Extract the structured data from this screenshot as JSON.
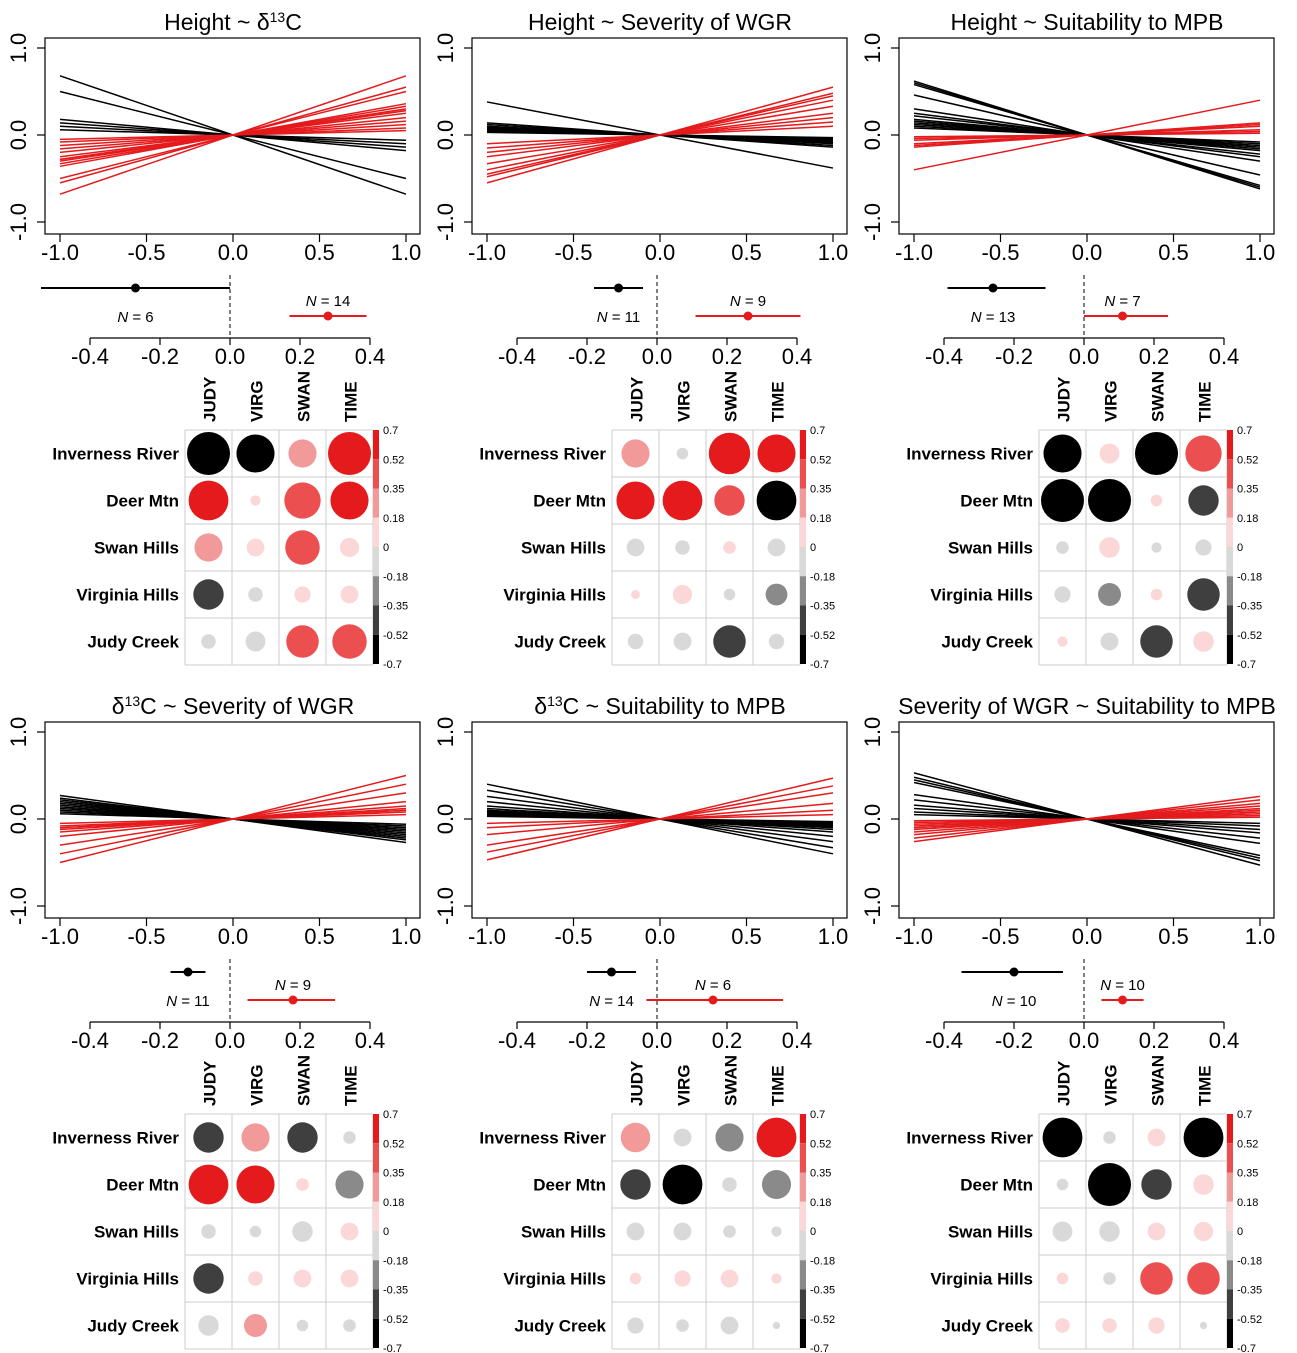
{
  "palette": {
    "neg": "#000000",
    "pos": "#e41a1c",
    "grid": "#cccccc"
  },
  "chart_data": [
    {
      "type": "line",
      "title": "Height ~ δ13C",
      "title_parts": [
        "Height ~ δ",
        "13",
        "C"
      ],
      "xlim": [
        -1,
        1
      ],
      "ylim": [
        -1,
        1
      ],
      "xticks": [
        "-1.0",
        "-0.5",
        "0.0",
        "0.5",
        "1.0"
      ],
      "yticks": [
        "-1.0",
        "0.0",
        "1.0"
      ],
      "slopes": [
        -0.68,
        -0.5,
        -0.18,
        -0.14,
        -0.1,
        -0.06,
        0.68,
        0.55,
        0.5,
        0.36,
        0.33,
        0.28,
        0.25,
        0.2,
        0.16,
        0.12,
        0.08,
        0.05,
        0.28,
        0.3
      ],
      "forest": {
        "type": "scatter",
        "neg": {
          "mean": -0.27,
          "lo": -0.54,
          "hi": 0.0,
          "label": "N = 6"
        },
        "pos": {
          "mean": 0.28,
          "lo": 0.17,
          "hi": 0.39,
          "label": "N = 14"
        },
        "xticks": [
          "-0.4",
          "-0.2",
          "0.0",
          "0.2",
          "0.4"
        ]
      },
      "matrix": {
        "type": "heatmap",
        "rows": [
          "Inverness River",
          "Deer Mtn",
          "Swan Hills",
          "Virginia Hills",
          "Judy Creek"
        ],
        "cols": [
          "JUDY",
          "VIRG",
          "SWAN",
          "TIME"
        ],
        "values": [
          [
            -0.7,
            -0.55,
            0.3,
            0.7
          ],
          [
            0.6,
            0.04,
            0.5,
            0.55
          ],
          [
            0.3,
            0.12,
            0.45,
            0.14
          ],
          [
            -0.35,
            -0.08,
            0.1,
            0.12
          ],
          [
            -0.08,
            -0.15,
            0.4,
            0.45
          ]
        ]
      }
    },
    {
      "type": "line",
      "title": "Height ~ Severity of WGR",
      "title_parts": [
        "Height ~ Severity of WGR",
        "",
        ""
      ],
      "xlim": [
        -1,
        1
      ],
      "ylim": [
        -1,
        1
      ],
      "xticks": [
        "-1.0",
        "-0.5",
        "0.0",
        "0.5",
        "1.0"
      ],
      "yticks": [
        "-1.0",
        "0.0",
        "1.0"
      ],
      "slopes": [
        -0.38,
        -0.14,
        -0.12,
        -0.1,
        -0.09,
        -0.08,
        -0.07,
        -0.06,
        -0.05,
        -0.04,
        -0.03,
        0.55,
        0.48,
        0.45,
        0.4,
        0.33,
        0.25,
        0.2,
        0.15,
        0.1
      ],
      "forest": {
        "type": "scatter",
        "neg": {
          "mean": -0.11,
          "lo": -0.18,
          "hi": -0.04,
          "label": "N = 11"
        },
        "pos": {
          "mean": 0.26,
          "lo": 0.11,
          "hi": 0.41,
          "label": "N = 9"
        },
        "xticks": [
          "-0.4",
          "-0.2",
          "0.0",
          "0.2",
          "0.4"
        ]
      },
      "matrix": {
        "type": "heatmap",
        "rows": [
          "Inverness River",
          "Deer Mtn",
          "Swan Hills",
          "Virginia Hills",
          "Judy Creek"
        ],
        "cols": [
          "JUDY",
          "VIRG",
          "SWAN",
          "TIME"
        ],
        "values": [
          [
            0.3,
            -0.05,
            0.65,
            0.55
          ],
          [
            0.55,
            0.6,
            0.35,
            -0.6
          ],
          [
            -0.12,
            -0.08,
            0.06,
            -0.12
          ],
          [
            0.03,
            0.14,
            -0.05,
            -0.18
          ],
          [
            -0.09,
            -0.12,
            -0.4,
            -0.09
          ]
        ]
      }
    },
    {
      "type": "line",
      "title": "Height ~ Suitability to MPB",
      "title_parts": [
        "Height ~ Suitability to MPB",
        "",
        ""
      ],
      "xlim": [
        -1,
        1
      ],
      "ylim": [
        -1,
        1
      ],
      "xticks": [
        "-1.0",
        "-0.5",
        "0.0",
        "0.5",
        "1.0"
      ],
      "yticks": [
        "-1.0",
        "0.0",
        "1.0"
      ],
      "slopes": [
        -0.62,
        -0.6,
        -0.58,
        -0.46,
        -0.3,
        -0.25,
        -0.22,
        -0.18,
        -0.16,
        -0.14,
        -0.12,
        -0.1,
        -0.08,
        0.4,
        0.14,
        0.12,
        0.1,
        0.06,
        0.04,
        0.02
      ],
      "forest": {
        "type": "scatter",
        "neg": {
          "mean": -0.26,
          "lo": -0.39,
          "hi": -0.11,
          "label": "N = 13"
        },
        "pos": {
          "mean": 0.11,
          "lo": 0.0,
          "hi": 0.24,
          "label": "N = 7"
        },
        "xticks": [
          "-0.4",
          "-0.2",
          "0.0",
          "0.2",
          "0.4"
        ]
      },
      "matrix": {
        "type": "heatmap",
        "rows": [
          "Inverness River",
          "Deer Mtn",
          "Swan Hills",
          "Virginia Hills",
          "Judy Creek"
        ],
        "cols": [
          "JUDY",
          "VIRG",
          "SWAN",
          "TIME"
        ],
        "values": [
          [
            -0.55,
            0.15,
            -0.7,
            0.5
          ],
          [
            -0.7,
            -0.7,
            0.05,
            -0.35
          ],
          [
            -0.06,
            0.16,
            -0.04,
            -0.1
          ],
          [
            -0.1,
            -0.2,
            0.05,
            -0.4
          ],
          [
            0.04,
            -0.12,
            -0.4,
            0.16
          ]
        ]
      }
    },
    {
      "type": "line",
      "title": "δ13C ~ Severity of WGR",
      "title_parts": [
        "δ",
        "13",
        "C ~ Severity of WGR"
      ],
      "xlim": [
        -1,
        1
      ],
      "ylim": [
        -1,
        1
      ],
      "xticks": [
        "-1.0",
        "-0.5",
        "0.0",
        "0.5",
        "1.0"
      ],
      "yticks": [
        "-1.0",
        "0.0",
        "1.0"
      ],
      "slopes": [
        -0.27,
        -0.24,
        -0.22,
        -0.2,
        -0.18,
        -0.16,
        -0.14,
        -0.12,
        -0.1,
        -0.08,
        -0.06,
        0.5,
        0.4,
        0.3,
        0.2,
        0.15,
        0.12,
        0.1,
        0.08,
        0.05
      ],
      "forest": {
        "type": "scatter",
        "neg": {
          "mean": -0.12,
          "lo": -0.17,
          "hi": -0.07,
          "label": "N = 11"
        },
        "pos": {
          "mean": 0.18,
          "lo": 0.05,
          "hi": 0.3,
          "label": "N = 9"
        },
        "xticks": [
          "-0.4",
          "-0.2",
          "0.0",
          "0.2",
          "0.4"
        ]
      },
      "matrix": {
        "type": "heatmap",
        "rows": [
          "Inverness River",
          "Deer Mtn",
          "Swan Hills",
          "Virginia Hills",
          "Judy Creek"
        ],
        "cols": [
          "JUDY",
          "VIRG",
          "SWAN",
          "TIME"
        ],
        "values": [
          [
            -0.35,
            0.3,
            -0.35,
            -0.06
          ],
          [
            0.6,
            0.55,
            0.06,
            -0.3
          ],
          [
            -0.08,
            -0.05,
            -0.16,
            0.12
          ],
          [
            -0.35,
            0.08,
            0.12,
            0.12
          ],
          [
            -0.16,
            0.2,
            -0.05,
            -0.06
          ]
        ]
      }
    },
    {
      "type": "line",
      "title": "δ13C ~ Suitability to MPB",
      "title_parts": [
        "δ",
        "13",
        "C ~ Suitability to MPB"
      ],
      "xlim": [
        -1,
        1
      ],
      "ylim": [
        -1,
        1
      ],
      "xticks": [
        "-1.0",
        "-0.5",
        "0.0",
        "0.5",
        "1.0"
      ],
      "yticks": [
        "-1.0",
        "0.0",
        "1.0"
      ],
      "slopes": [
        -0.4,
        -0.33,
        -0.26,
        -0.2,
        -0.15,
        -0.12,
        -0.1,
        -0.09,
        -0.08,
        -0.07,
        -0.06,
        -0.05,
        -0.04,
        -0.03,
        0.47,
        0.38,
        0.3,
        0.18,
        0.1,
        0.05
      ],
      "forest": {
        "type": "scatter",
        "neg": {
          "mean": -0.13,
          "lo": -0.2,
          "hi": -0.06,
          "label": "N = 14"
        },
        "pos": {
          "mean": 0.16,
          "lo": -0.03,
          "hi": 0.36,
          "label": "N = 6"
        },
        "xticks": [
          "-0.4",
          "-0.2",
          "0.0",
          "0.2",
          "0.4"
        ]
      },
      "matrix": {
        "type": "heatmap",
        "rows": [
          "Inverness River",
          "Deer Mtn",
          "Swan Hills",
          "Virginia Hills",
          "Judy Creek"
        ],
        "cols": [
          "JUDY",
          "VIRG",
          "SWAN",
          "TIME"
        ],
        "values": [
          [
            0.33,
            -0.12,
            -0.3,
            0.6
          ],
          [
            -0.35,
            -0.6,
            -0.08,
            -0.32
          ],
          [
            -0.12,
            -0.12,
            -0.06,
            -0.04
          ],
          [
            0.05,
            0.1,
            0.12,
            0.04
          ],
          [
            -0.1,
            -0.06,
            -0.12,
            -0.02
          ]
        ]
      }
    },
    {
      "type": "line",
      "title": "Severity of WGR ~ Suitability to MPB",
      "title_parts": [
        "Severity of WGR ~ Suitability to MPB",
        "",
        ""
      ],
      "xlim": [
        -1,
        1
      ],
      "ylim": [
        -1,
        1
      ],
      "xticks": [
        "-1.0",
        "-0.5",
        "0.0",
        "0.5",
        "1.0"
      ],
      "yticks": [
        "-1.0",
        "0.0",
        "1.0"
      ],
      "slopes": [
        -0.53,
        -0.48,
        -0.45,
        -0.42,
        -0.28,
        -0.22,
        -0.16,
        -0.12,
        -0.08,
        -0.05,
        0.26,
        0.22,
        0.18,
        0.15,
        0.12,
        0.1,
        0.08,
        0.06,
        0.04,
        0.02
      ],
      "forest": {
        "type": "scatter",
        "neg": {
          "mean": -0.2,
          "lo": -0.35,
          "hi": -0.06,
          "label": "N = 10"
        },
        "pos": {
          "mean": 0.11,
          "lo": 0.05,
          "hi": 0.17,
          "label": "N = 10"
        },
        "xticks": [
          "-0.4",
          "-0.2",
          "0.0",
          "0.2",
          "0.4"
        ]
      },
      "matrix": {
        "type": "heatmap",
        "rows": [
          "Inverness River",
          "Deer Mtn",
          "Swan Hills",
          "Virginia Hills",
          "Judy Creek"
        ],
        "cols": [
          "JUDY",
          "VIRG",
          "SWAN",
          "TIME"
        ],
        "values": [
          [
            -0.6,
            -0.06,
            0.12,
            -0.6
          ],
          [
            -0.05,
            -0.7,
            -0.35,
            0.16
          ],
          [
            -0.15,
            -0.16,
            0.12,
            0.14
          ],
          [
            0.05,
            -0.06,
            0.4,
            0.4
          ],
          [
            0.08,
            0.08,
            0.1,
            -0.02
          ]
        ]
      }
    }
  ],
  "colorbar": {
    "labels": [
      "0.7",
      "0.52",
      "0.35",
      "0.18",
      "0",
      "-0.18",
      "-0.35",
      "-0.52",
      "-0.7"
    ]
  }
}
